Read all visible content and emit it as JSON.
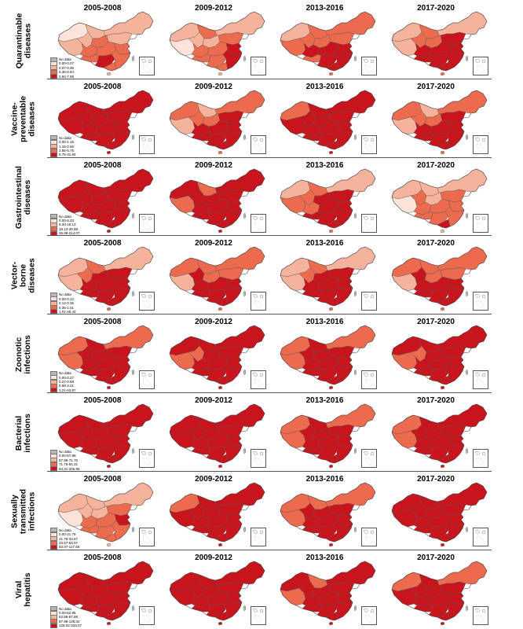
{
  "periods": [
    "2005-2008",
    "2009-2012",
    "2013-2016",
    "2017-2020"
  ],
  "palette": {
    "no_data": "#b5b5b5",
    "level1": "#fde3d9",
    "level2": "#f6b39c",
    "level3": "#ec6a4e",
    "level4": "#c8141c",
    "border": "#555555"
  },
  "rows": [
    {
      "label": "Quarantinable diseases",
      "legend": [
        "No data",
        "0.00-0.07",
        "0.07-0.36",
        "0.36-0.94",
        "0.94-7.99"
      ],
      "intensity": [
        1,
        1,
        2,
        2
      ]
    },
    {
      "label": "Vaccine-preventable diseases",
      "legend": [
        "No data",
        "0.00-1.16",
        "1.16-2.56",
        "2.56-5.75",
        "5.75-31.84"
      ],
      "intensity": [
        4,
        2,
        3,
        2
      ]
    },
    {
      "label": "Gastrointestinal diseases",
      "legend": [
        "No data",
        "0.00-8.33",
        "8.33-18.13",
        "18.13-26.88",
        "26.88-214.07"
      ],
      "intensity": [
        4,
        3,
        2,
        1
      ]
    },
    {
      "label": "Vector-borne diseases",
      "legend": [
        "No data",
        "0.00-0.12",
        "0.12-0.35",
        "0.35-1.01",
        "1.01-40.43"
      ],
      "intensity": [
        2,
        2,
        2,
        2
      ]
    },
    {
      "label": "Zoonotic infections",
      "legend": [
        "No data",
        "0.00-0.27",
        "0.27-0.58",
        "0.58-3.21",
        "3.21-63.87"
      ],
      "intensity": [
        3,
        3,
        3,
        3
      ]
    },
    {
      "label": "Bacterial infections",
      "legend": [
        "No data",
        "0.00-57.99",
        "57.99-71.75",
        "71.75-94.31",
        "94.31-206.95"
      ],
      "intensity": [
        4,
        4,
        3,
        3
      ]
    },
    {
      "label": "Sexually transmitted infections",
      "legend": [
        "No data",
        "0.00-21.79",
        "21.79-33.57",
        "33.57-63.07",
        "63.07-117.48"
      ],
      "intensity": [
        1,
        3,
        3,
        4
      ]
    },
    {
      "label": "Viral hepatitis",
      "legend": [
        "No data",
        "0.00-62.86",
        "62.86-87.98",
        "87.98-128.02",
        "128.02-333.07"
      ],
      "intensity": [
        4,
        4,
        3,
        3
      ]
    }
  ]
}
